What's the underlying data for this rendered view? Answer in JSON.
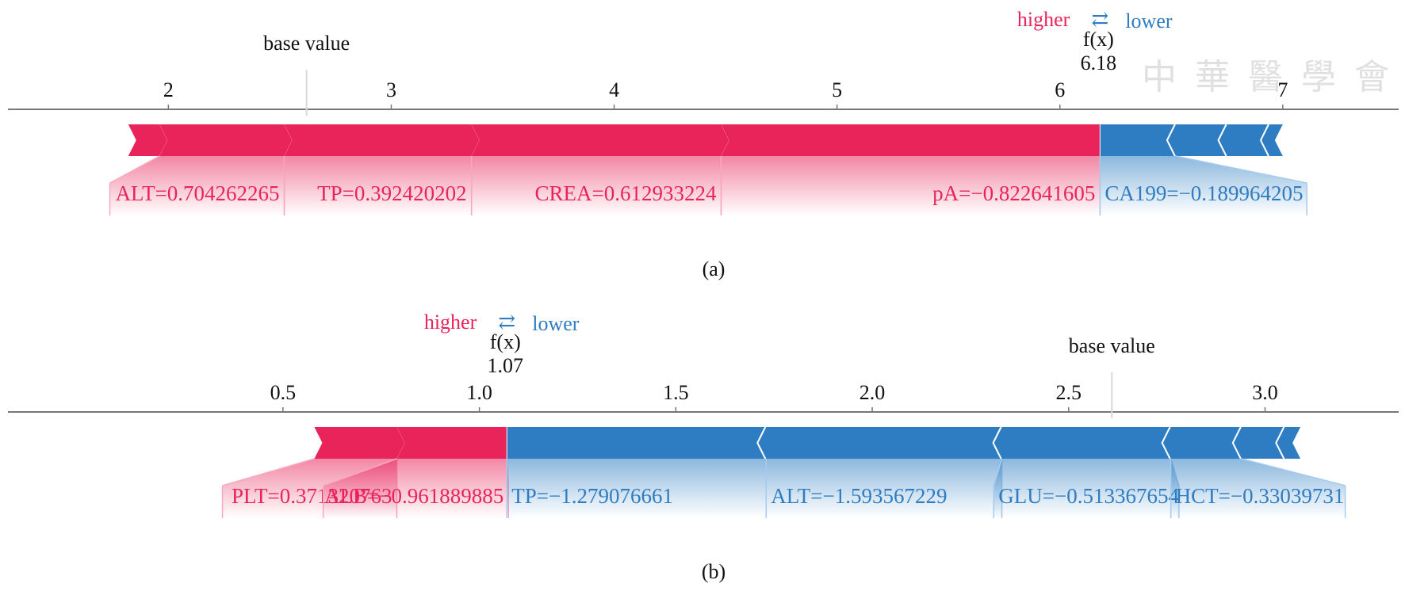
{
  "colors": {
    "pos": "#e8245a",
    "neg": "#2e7dc2",
    "pos_light": "#f7a9bf",
    "neg_light": "#a7cbee"
  },
  "watermark": "中 華 醫 學 會",
  "chart_data": [
    {
      "type": "force",
      "caption": "(a)",
      "higher_label": "higher",
      "lower_label": "lower",
      "fx_label": "f(x)",
      "fx_value": "6.18",
      "fx": 6.18,
      "base_label": "base value",
      "base_value": 2.62,
      "xlim": [
        1.28,
        7.52
      ],
      "ticks": [
        2,
        3,
        4,
        5,
        6,
        7
      ],
      "tick_labels": [
        "2",
        "3",
        "4",
        "5",
        "6",
        "7"
      ],
      "positive": {
        "bounds": [
          1.82,
          1.96,
          2.52,
          3.36,
          4.48,
          6.18
        ],
        "labels": [
          "ALT=0.704262265",
          "TP=0.392420202",
          "CREA=0.612933224",
          "pA=−0.822641605"
        ]
      },
      "negative": {
        "bounds": [
          6.18,
          6.52,
          6.75,
          6.94,
          7.0
        ],
        "labels": [
          "CA199=−0.189964205"
        ]
      }
    },
    {
      "type": "force",
      "caption": "(b)",
      "higher_label": "higher",
      "lower_label": "lower",
      "fx_label": "f(x)",
      "fx_value": "1.07",
      "fx": 1.07,
      "base_label": "base value",
      "base_value": 2.61,
      "xlim": [
        -0.2,
        3.34
      ],
      "ticks": [
        0.5,
        1.0,
        1.5,
        2.0,
        2.5,
        3.0
      ],
      "tick_labels": [
        "0.5",
        "1.0",
        "1.5",
        "2.0",
        "2.5",
        "3.0"
      ],
      "positive": {
        "bounds": [
          0.58,
          0.79,
          1.07
        ],
        "labels": [
          "PLT=0.371320763",
          "ALB=−0.961889885"
        ]
      },
      "negative": {
        "bounds": [
          1.07,
          1.73,
          2.33,
          2.76,
          2.94,
          3.05,
          3.09
        ],
        "labels": [
          "TP=−1.279076661",
          "ALT=−1.593567229",
          "GLU=−0.513367654",
          "HCT=−0.33039731"
        ]
      }
    }
  ]
}
